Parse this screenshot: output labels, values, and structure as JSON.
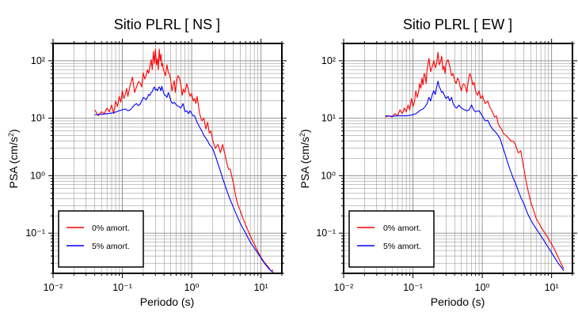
{
  "chart_data": [
    {
      "type": "line",
      "title": "Sitio PLRL [ NS ]",
      "xlabel": "Periodo (s)",
      "ylabel": "PSA (cm/s²)",
      "xscale": "log",
      "yscale": "log",
      "xlim": [
        0.01,
        20
      ],
      "ylim": [
        0.02,
        200
      ],
      "grid": true,
      "legend_position": "bottom-left",
      "x_ticks": [
        "10⁻²",
        "10⁻¹",
        "10⁰",
        "10¹"
      ],
      "y_ticks": [
        "10⁻¹",
        "10⁰",
        "10¹",
        "10²"
      ],
      "series": [
        {
          "name": "0% amort.",
          "color": "#ff0000",
          "x": [
            0.04,
            0.045,
            0.05,
            0.055,
            0.06,
            0.065,
            0.07,
            0.075,
            0.08,
            0.085,
            0.09,
            0.095,
            0.1,
            0.105,
            0.11,
            0.115,
            0.12,
            0.13,
            0.14,
            0.15,
            0.16,
            0.17,
            0.18,
            0.19,
            0.2,
            0.21,
            0.22,
            0.23,
            0.24,
            0.25,
            0.26,
            0.27,
            0.28,
            0.29,
            0.3,
            0.31,
            0.32,
            0.33,
            0.34,
            0.35,
            0.36,
            0.37,
            0.38,
            0.39,
            0.4,
            0.42,
            0.44,
            0.46,
            0.48,
            0.5,
            0.52,
            0.54,
            0.56,
            0.58,
            0.6,
            0.63,
            0.66,
            0.7,
            0.73,
            0.76,
            0.8,
            0.85,
            0.9,
            0.95,
            1.0,
            1.05,
            1.1,
            1.15,
            1.2,
            1.3,
            1.4,
            1.5,
            1.6,
            1.7,
            1.8,
            1.9,
            2.0,
            2.2,
            2.4,
            2.6,
            2.8,
            3.0,
            3.2,
            3.4,
            3.6,
            3.8,
            4.0,
            4.3,
            4.6,
            5.0,
            5.5,
            6.0,
            6.5,
            7.0,
            7.5,
            8.0,
            8.5,
            9.0,
            10.0,
            11.0,
            12.0,
            13.0,
            14.0,
            15.0
          ],
          "y": [
            14,
            11,
            13,
            12,
            15,
            13,
            17,
            12,
            20,
            16,
            24,
            19,
            30,
            22,
            26,
            33,
            24,
            38,
            52,
            28,
            35,
            43,
            42,
            35,
            62,
            48,
            55,
            70,
            60,
            80,
            105,
            70,
            145,
            90,
            160,
            85,
            110,
            70,
            160,
            100,
            130,
            80,
            90,
            70,
            65,
            55,
            85,
            62,
            58,
            45,
            30,
            38,
            45,
            28,
            40,
            55,
            52,
            38,
            25,
            32,
            28,
            40,
            30,
            24,
            27,
            20,
            22,
            18,
            24,
            12,
            9,
            10,
            6.5,
            8.5,
            5.5,
            6,
            4.2,
            3,
            3.5,
            2.5,
            3.5,
            2.4,
            1.7,
            1.3,
            1.3,
            0.95,
            0.75,
            0.45,
            0.32,
            0.25,
            0.18,
            0.14,
            0.11,
            0.09,
            0.075,
            0.065,
            0.055,
            0.048,
            0.038,
            0.032,
            0.028,
            0.025,
            0.022,
            0.023
          ]
        },
        {
          "name": "5% amort.",
          "color": "#0000ff",
          "x": [
            0.04,
            0.05,
            0.06,
            0.07,
            0.08,
            0.09,
            0.1,
            0.11,
            0.12,
            0.13,
            0.14,
            0.15,
            0.16,
            0.17,
            0.18,
            0.19,
            0.2,
            0.21,
            0.22,
            0.23,
            0.24,
            0.25,
            0.26,
            0.27,
            0.28,
            0.29,
            0.3,
            0.31,
            0.32,
            0.33,
            0.34,
            0.35,
            0.36,
            0.37,
            0.38,
            0.4,
            0.42,
            0.44,
            0.46,
            0.48,
            0.5,
            0.53,
            0.56,
            0.6,
            0.65,
            0.7,
            0.75,
            0.8,
            0.85,
            0.9,
            0.95,
            1.0,
            1.05,
            1.1,
            1.2,
            1.3,
            1.4,
            1.5,
            1.6,
            1.7,
            1.8,
            2.0,
            2.2,
            2.4,
            2.6,
            2.8,
            3.0,
            3.3,
            3.6,
            4.0,
            4.5,
            5.0,
            5.5,
            6.0,
            7.0,
            8.0,
            9.0,
            10.0,
            11.0,
            12.0,
            13.0,
            14.0,
            15.0
          ],
          "y": [
            11.5,
            11.7,
            12,
            12.3,
            12.8,
            13.5,
            14,
            14.5,
            13.5,
            14,
            15.5,
            17,
            18,
            16.5,
            17.5,
            20,
            23,
            22,
            21,
            23,
            26,
            25,
            28,
            29,
            33,
            35,
            31,
            32,
            30,
            33,
            35,
            33,
            30,
            36,
            32,
            26,
            25,
            23,
            28,
            24,
            20,
            18,
            19,
            17,
            16,
            15,
            18,
            13,
            13.5,
            12,
            13.5,
            12,
            11,
            11,
            8.5,
            7,
            6,
            5,
            4.5,
            4,
            3.5,
            3,
            2.2,
            1.6,
            1.2,
            0.9,
            0.7,
            0.5,
            0.38,
            0.28,
            0.2,
            0.15,
            0.12,
            0.1,
            0.07,
            0.055,
            0.045,
            0.037,
            0.031,
            0.027,
            0.024,
            0.022,
            0.021
          ]
        }
      ]
    },
    {
      "type": "line",
      "title": "Sitio PLRL [ EW ]",
      "xlabel": "Periodo (s)",
      "ylabel": "PSA (cm/s²)",
      "xscale": "log",
      "yscale": "log",
      "xlim": [
        0.01,
        20
      ],
      "ylim": [
        0.02,
        200
      ],
      "grid": true,
      "legend_position": "bottom-left",
      "x_ticks": [
        "10⁻²",
        "10⁻¹",
        "10⁰",
        "10¹"
      ],
      "y_ticks": [
        "10⁻¹",
        "10⁰",
        "10¹",
        "10²"
      ],
      "series": [
        {
          "name": "0% amort.",
          "color": "#ff0000",
          "x": [
            0.04,
            0.045,
            0.05,
            0.055,
            0.06,
            0.065,
            0.07,
            0.075,
            0.08,
            0.085,
            0.09,
            0.095,
            0.1,
            0.105,
            0.11,
            0.115,
            0.12,
            0.125,
            0.13,
            0.135,
            0.14,
            0.145,
            0.15,
            0.155,
            0.16,
            0.17,
            0.18,
            0.19,
            0.2,
            0.21,
            0.22,
            0.23,
            0.24,
            0.25,
            0.26,
            0.27,
            0.28,
            0.29,
            0.3,
            0.32,
            0.34,
            0.36,
            0.38,
            0.4,
            0.42,
            0.44,
            0.46,
            0.48,
            0.5,
            0.53,
            0.56,
            0.6,
            0.63,
            0.66,
            0.7,
            0.73,
            0.76,
            0.8,
            0.85,
            0.9,
            0.95,
            1.0,
            1.1,
            1.2,
            1.3,
            1.4,
            1.5,
            1.6,
            1.7,
            1.8,
            1.9,
            2.0,
            2.2,
            2.4,
            2.6,
            2.8,
            3.0,
            3.3,
            3.6,
            3.8,
            4.0,
            4.2,
            4.5,
            5.0,
            5.5,
            6.0,
            7.0,
            8.0,
            9.0,
            10.0,
            11.0,
            12.0,
            13.0,
            14.0,
            15.0
          ],
          "y": [
            10.5,
            11,
            10.5,
            12,
            11,
            14,
            12,
            15,
            13,
            17,
            14,
            22,
            16,
            19,
            30,
            23,
            28,
            40,
            33,
            50,
            38,
            60,
            55,
            40,
            70,
            110,
            65,
            80,
            100,
            75,
            90,
            140,
            85,
            95,
            120,
            70,
            80,
            60,
            90,
            105,
            80,
            55,
            60,
            45,
            40,
            50,
            45,
            35,
            30,
            40,
            38,
            28,
            45,
            60,
            50,
            38,
            42,
            30,
            25,
            30,
            22,
            25,
            18,
            20,
            15,
            13,
            10.5,
            11,
            8,
            7,
            6.5,
            5.5,
            5,
            4.5,
            4,
            4,
            3.5,
            2.5,
            2.7,
            1.8,
            1.3,
            0.9,
            0.6,
            0.35,
            0.25,
            0.18,
            0.13,
            0.1,
            0.08,
            0.065,
            0.052,
            0.042,
            0.034,
            0.028,
            0.024
          ]
        },
        {
          "name": "5% amort.",
          "color": "#0000ff",
          "x": [
            0.04,
            0.05,
            0.06,
            0.07,
            0.08,
            0.09,
            0.1,
            0.11,
            0.12,
            0.13,
            0.14,
            0.15,
            0.16,
            0.17,
            0.18,
            0.19,
            0.2,
            0.21,
            0.22,
            0.23,
            0.24,
            0.25,
            0.26,
            0.27,
            0.28,
            0.3,
            0.32,
            0.34,
            0.36,
            0.38,
            0.4,
            0.43,
            0.46,
            0.5,
            0.55,
            0.6,
            0.65,
            0.7,
            0.75,
            0.8,
            0.9,
            1.0,
            1.1,
            1.2,
            1.3,
            1.4,
            1.5,
            1.6,
            1.8,
            2.0,
            2.2,
            2.4,
            2.6,
            2.8,
            3.0,
            3.3,
            3.6,
            4.0,
            4.5,
            5.0,
            5.5,
            6.0,
            7.0,
            8.0,
            9.0,
            10.0,
            11.0,
            12.0,
            13.0,
            14.0,
            15.0
          ],
          "y": [
            11,
            10.8,
            11,
            11,
            11,
            11.2,
            11.5,
            12,
            13,
            14,
            14.5,
            16,
            18,
            23,
            20,
            26,
            30,
            26,
            35,
            44,
            35,
            32,
            28,
            29,
            26,
            22,
            24,
            20,
            23,
            18,
            16,
            15,
            17,
            15,
            14,
            13.5,
            14,
            17,
            14,
            13,
            13.5,
            11,
            9,
            9.2,
            7.5,
            6.5,
            6,
            5.5,
            4.5,
            3,
            2.1,
            1.5,
            1.15,
            0.9,
            0.75,
            0.55,
            0.42,
            0.32,
            0.22,
            0.17,
            0.14,
            0.12,
            0.09,
            0.07,
            0.056,
            0.046,
            0.038,
            0.032,
            0.028,
            0.025,
            0.022
          ]
        }
      ]
    }
  ]
}
